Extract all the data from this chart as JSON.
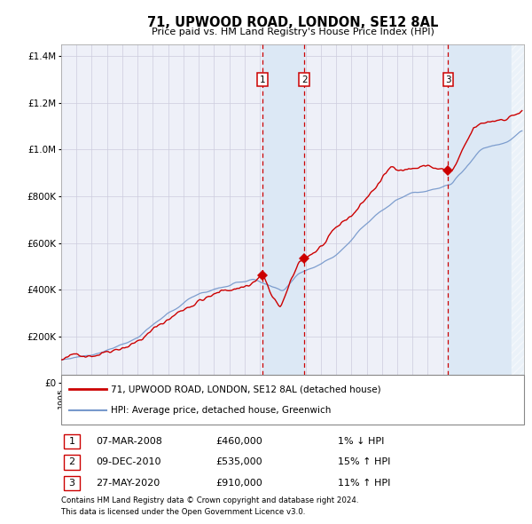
{
  "title": "71, UPWOOD ROAD, LONDON, SE12 8AL",
  "subtitle": "Price paid vs. HM Land Registry's House Price Index (HPI)",
  "legend_red": "71, UPWOOD ROAD, LONDON, SE12 8AL (detached house)",
  "legend_blue": "HPI: Average price, detached house, Greenwich",
  "transactions": [
    {
      "num": 1,
      "date": "07-MAR-2008",
      "price": 460000,
      "pct": "1%",
      "dir": "↓"
    },
    {
      "num": 2,
      "date": "09-DEC-2010",
      "price": 535000,
      "pct": "15%",
      "dir": "↑"
    },
    {
      "num": 3,
      "date": "27-MAY-2020",
      "price": 910000,
      "pct": "11%",
      "dir": "↑"
    }
  ],
  "footnote1": "Contains HM Land Registry data © Crown copyright and database right 2024.",
  "footnote2": "This data is licensed under the Open Government Licence v3.0.",
  "ylim": [
    0,
    1450000
  ],
  "yticks": [
    0,
    200000,
    400000,
    600000,
    800000,
    1000000,
    1200000,
    1400000
  ],
  "xlim_start": 1995.0,
  "xlim_end": 2025.3,
  "red_color": "#CC0000",
  "blue_color": "#7799CC",
  "shade_color": "#DCE8F5",
  "grid_color": "#CCCCDD",
  "bg_color": "#EEF0F8"
}
